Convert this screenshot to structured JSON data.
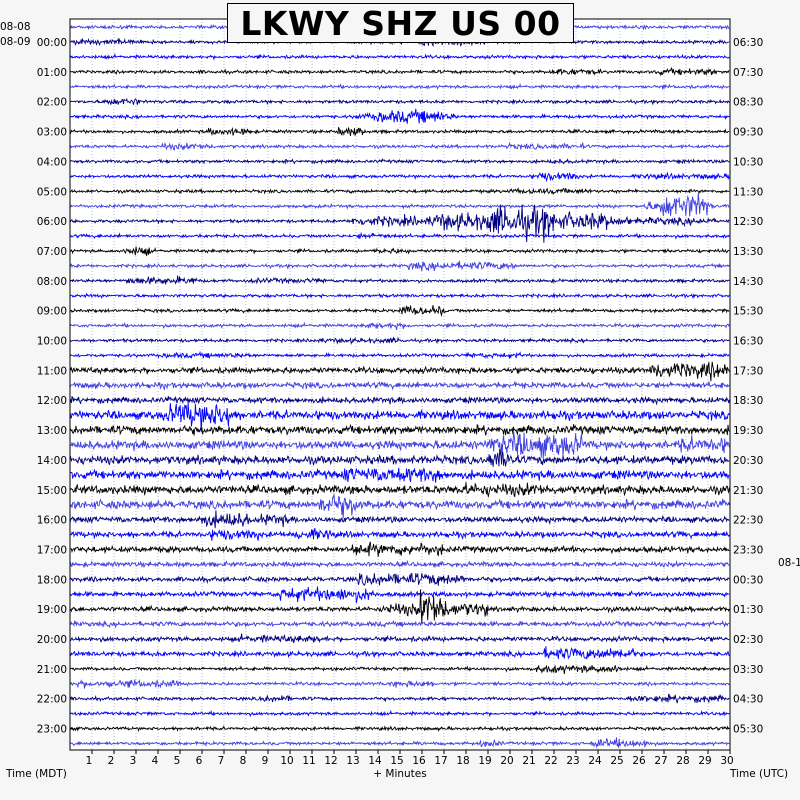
{
  "chart_data": {
    "type": "seismogram",
    "title": "LKWY SHZ US 00",
    "xlabel": "+ Minutes",
    "left_axis_label": "Time (MDT)",
    "right_axis_label": "Time (UTC)",
    "xlim": [
      0,
      30
    ],
    "x_ticks": [
      1,
      2,
      3,
      4,
      5,
      6,
      7,
      8,
      9,
      10,
      11,
      12,
      13,
      14,
      15,
      16,
      17,
      18,
      19,
      20,
      21,
      22,
      23,
      24,
      25,
      26,
      27,
      28,
      29,
      30
    ],
    "left_date_labels": [
      "08-08",
      "08-09"
    ],
    "right_date_labels": [
      "08-1"
    ],
    "left_time_labels": [
      "00:00",
      "01:00",
      "02:00",
      "03:00",
      "04:00",
      "05:00",
      "06:00",
      "07:00",
      "08:00",
      "09:00",
      "10:00",
      "11:00",
      "12:00",
      "13:00",
      "14:00",
      "15:00",
      "16:00",
      "17:00",
      "18:00",
      "19:00",
      "20:00",
      "21:00",
      "22:00",
      "23:00"
    ],
    "right_time_labels": [
      "06:30",
      "07:30",
      "08:30",
      "09:30",
      "10:30",
      "11:30",
      "12:30",
      "13:30",
      "14:30",
      "15:30",
      "16:30",
      "17:30",
      "18:30",
      "19:30",
      "20:30",
      "21:30",
      "22:30",
      "23:30",
      "00:30",
      "01:30",
      "02:30",
      "03:30",
      "04:30",
      "05:30"
    ],
    "trace_colors": [
      "#000080",
      "#0000ff",
      "#000000",
      "#4040e0"
    ],
    "traces_per_hour": 2,
    "event": {
      "label": "earthquake",
      "row_hour": 6,
      "start_minute": 12.8,
      "end_minute": 25.5,
      "peak_minute": 20.5
    },
    "noise_trend": "amplitude increases from about 11:00 to 17:00 MDT"
  }
}
